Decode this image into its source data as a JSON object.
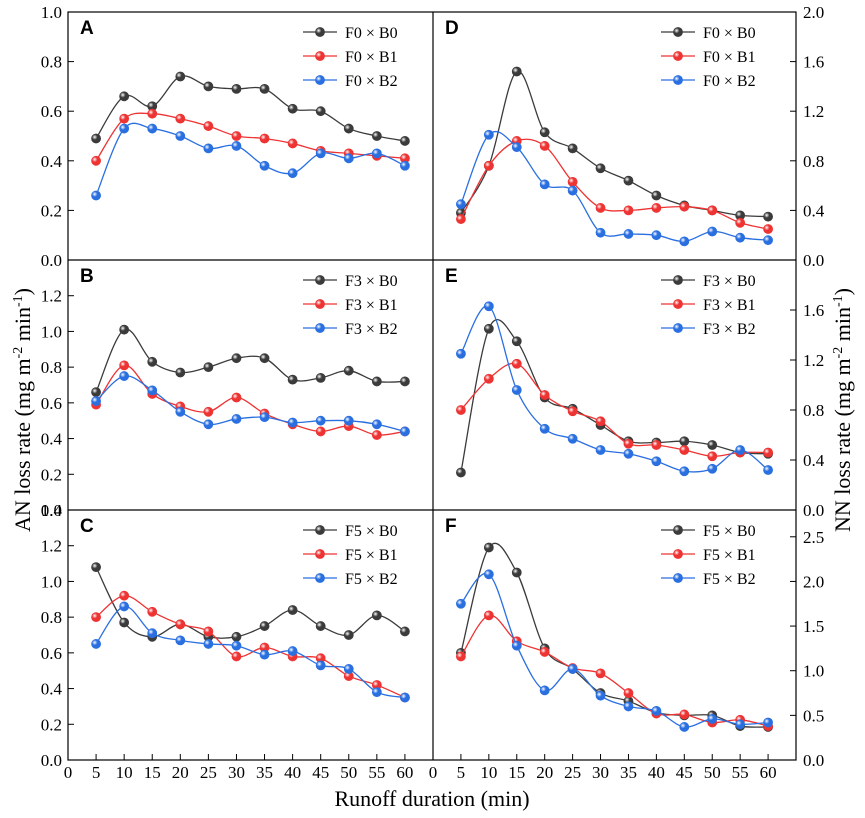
{
  "figure": {
    "xlabel": "Runoff duration (min)",
    "left_ylabel": {
      "main": "AN loss rate (mg m",
      "sup1": "-2",
      "mid": " min",
      "sup2": "-1",
      "end": ")"
    },
    "right_ylabel": {
      "main": "NN loss rate (mg m",
      "sup1": "-2",
      "mid": " min",
      "sup2": "-1",
      "end": ")"
    },
    "x_ticks": [
      "0",
      "5",
      "10",
      "15",
      "20",
      "25",
      "30",
      "35",
      "40",
      "45",
      "50",
      "55",
      "60"
    ],
    "colors": {
      "B0": "#3b3b3b",
      "B1": "#ee3333",
      "B2": "#2a6fe0"
    }
  },
  "chart_data": [
    {
      "panel": "A",
      "type": "line",
      "side": "left",
      "xlabel": "Runoff duration (min)",
      "ylabel": "AN loss rate (mg m-2 min-1)",
      "x": [
        5,
        10,
        15,
        20,
        25,
        30,
        35,
        40,
        45,
        50,
        55,
        60
      ],
      "xlim": [
        0,
        65
      ],
      "ylim": [
        0,
        1.0
      ],
      "y_ticks": [
        0.0,
        0.2,
        0.4,
        0.6,
        0.8,
        1.0
      ],
      "y_tick_labels": [
        "0.0",
        "0.2",
        "0.4",
        "0.6",
        "0.8",
        "1.0"
      ],
      "series": [
        {
          "name": "F0 × B0",
          "values": [
            0.49,
            0.66,
            0.62,
            0.74,
            0.7,
            0.69,
            0.69,
            0.61,
            0.6,
            0.53,
            0.5,
            0.48
          ]
        },
        {
          "name": "F0 × B1",
          "values": [
            0.4,
            0.57,
            0.59,
            0.57,
            0.54,
            0.5,
            0.49,
            0.47,
            0.44,
            0.43,
            0.42,
            0.41
          ]
        },
        {
          "name": "F0 × B2",
          "values": [
            0.26,
            0.53,
            0.53,
            0.5,
            0.45,
            0.46,
            0.38,
            0.35,
            0.43,
            0.41,
            0.43,
            0.38
          ]
        }
      ]
    },
    {
      "panel": "B",
      "type": "line",
      "side": "left",
      "xlabel": "Runoff duration (min)",
      "ylabel": "AN loss rate (mg m-2 min-1)",
      "x": [
        5,
        10,
        15,
        20,
        25,
        30,
        35,
        40,
        45,
        50,
        55,
        60
      ],
      "xlim": [
        0,
        65
      ],
      "ylim": [
        0,
        1.4
      ],
      "y_ticks": [
        0.0,
        0.2,
        0.4,
        0.6,
        0.8,
        1.0,
        1.2
      ],
      "y_tick_labels": [
        "0.0",
        "0.2",
        "0.4",
        "0.6",
        "0.8",
        "1.0",
        "1.2"
      ],
      "series": [
        {
          "name": "F3 × B0",
          "values": [
            0.66,
            1.01,
            0.83,
            0.77,
            0.8,
            0.85,
            0.85,
            0.73,
            0.74,
            0.78,
            0.72,
            0.72
          ]
        },
        {
          "name": "F3 × B1",
          "values": [
            0.59,
            0.81,
            0.65,
            0.58,
            0.55,
            0.63,
            0.54,
            0.48,
            0.44,
            0.47,
            0.42,
            0.44
          ]
        },
        {
          "name": "F3 × B2",
          "values": [
            0.61,
            0.75,
            0.67,
            0.55,
            0.48,
            0.51,
            0.52,
            0.49,
            0.5,
            0.5,
            0.48,
            0.44
          ]
        }
      ]
    },
    {
      "panel": "C",
      "type": "line",
      "side": "left",
      "xlabel": "Runoff duration (min)",
      "ylabel": "AN loss rate (mg m-2 min-1)",
      "x": [
        5,
        10,
        15,
        20,
        25,
        30,
        35,
        40,
        45,
        50,
        55,
        60
      ],
      "xlim": [
        0,
        65
      ],
      "ylim": [
        0,
        1.4
      ],
      "y_ticks": [
        0.0,
        0.2,
        0.4,
        0.6,
        0.8,
        1.0,
        1.2,
        1.4
      ],
      "y_tick_labels": [
        "0.0",
        "0.2",
        "0.4",
        "0.6",
        "0.8",
        "1.0",
        "1.2",
        "1.4"
      ],
      "series": [
        {
          "name": "F5 × B0",
          "values": [
            1.08,
            0.77,
            0.69,
            0.76,
            0.69,
            0.69,
            0.75,
            0.84,
            0.75,
            0.7,
            0.81,
            0.72
          ]
        },
        {
          "name": "F5 × B1",
          "values": [
            0.8,
            0.92,
            0.83,
            0.76,
            0.72,
            0.58,
            0.63,
            0.58,
            0.57,
            0.47,
            0.42,
            0.35
          ]
        },
        {
          "name": "F5 × B2",
          "values": [
            0.65,
            0.86,
            0.71,
            0.67,
            0.65,
            0.64,
            0.59,
            0.61,
            0.53,
            0.51,
            0.38,
            0.35
          ]
        }
      ]
    },
    {
      "panel": "D",
      "type": "line",
      "side": "right",
      "xlabel": "Runoff duration (min)",
      "ylabel": "NN loss rate (mg m-2 min-1)",
      "x": [
        5,
        10,
        15,
        20,
        25,
        30,
        35,
        40,
        45,
        50,
        55,
        60
      ],
      "xlim": [
        0,
        65
      ],
      "ylim": [
        0,
        2.0
      ],
      "y_ticks": [
        0.0,
        0.4,
        0.8,
        1.2,
        1.6,
        2.0
      ],
      "y_tick_labels": [
        "0.0",
        "0.4",
        "0.8",
        "1.2",
        "1.6",
        "2.0"
      ],
      "series": [
        {
          "name": "F0 × B0",
          "values": [
            0.38,
            0.76,
            1.52,
            1.03,
            0.9,
            0.74,
            0.64,
            0.52,
            0.44,
            0.4,
            0.36,
            0.35
          ]
        },
        {
          "name": "F0 × B1",
          "values": [
            0.33,
            0.76,
            0.96,
            0.92,
            0.63,
            0.42,
            0.4,
            0.42,
            0.43,
            0.4,
            0.3,
            0.25
          ]
        },
        {
          "name": "F0 × B2",
          "values": [
            0.45,
            1.01,
            0.91,
            0.61,
            0.56,
            0.22,
            0.21,
            0.2,
            0.15,
            0.23,
            0.18,
            0.16
          ]
        }
      ]
    },
    {
      "panel": "E",
      "type": "line",
      "side": "right",
      "xlabel": "Runoff duration (min)",
      "ylabel": "NN loss rate (mg m-2 min-1)",
      "x": [
        5,
        10,
        15,
        20,
        25,
        30,
        35,
        40,
        45,
        50,
        55,
        60
      ],
      "xlim": [
        0,
        65
      ],
      "ylim": [
        0,
        2.0
      ],
      "y_ticks": [
        0.0,
        0.4,
        0.8,
        1.2,
        1.6
      ],
      "y_tick_labels": [
        "0.0",
        "0.4",
        "0.8",
        "1.2",
        "1.6"
      ],
      "series": [
        {
          "name": "F3 × B0",
          "values": [
            0.3,
            1.45,
            1.35,
            0.9,
            0.81,
            0.68,
            0.55,
            0.54,
            0.55,
            0.52,
            0.46,
            0.45
          ]
        },
        {
          "name": "F3 × B1",
          "values": [
            0.8,
            1.05,
            1.17,
            0.92,
            0.79,
            0.71,
            0.53,
            0.52,
            0.48,
            0.43,
            0.46,
            0.46
          ]
        },
        {
          "name": "F3 × B2",
          "values": [
            1.25,
            1.63,
            0.96,
            0.65,
            0.57,
            0.48,
            0.45,
            0.39,
            0.31,
            0.33,
            0.48,
            0.32
          ]
        }
      ]
    },
    {
      "panel": "F",
      "type": "line",
      "side": "right",
      "xlabel": "Runoff duration (min)",
      "ylabel": "NN loss rate (mg m-2 min-1)",
      "x": [
        5,
        10,
        15,
        20,
        25,
        30,
        35,
        40,
        45,
        50,
        55,
        60
      ],
      "xlim": [
        0,
        65
      ],
      "ylim": [
        0,
        2.8
      ],
      "y_ticks": [
        0.0,
        0.5,
        1.0,
        1.5,
        2.0,
        2.5
      ],
      "y_tick_labels": [
        "0.0",
        "0.5",
        "1.0",
        "1.5",
        "2.0",
        "2.5"
      ],
      "series": [
        {
          "name": "F5 × B0",
          "values": [
            1.2,
            2.38,
            2.1,
            1.25,
            1.02,
            0.75,
            0.66,
            0.53,
            0.5,
            0.5,
            0.38,
            0.37
          ]
        },
        {
          "name": "F5 × B1",
          "values": [
            1.16,
            1.62,
            1.33,
            1.21,
            1.03,
            0.97,
            0.75,
            0.52,
            0.51,
            0.42,
            0.45,
            0.38
          ]
        },
        {
          "name": "F5 × B2",
          "values": [
            1.75,
            2.08,
            1.28,
            0.78,
            1.02,
            0.72,
            0.6,
            0.55,
            0.37,
            0.46,
            0.4,
            0.42
          ]
        }
      ]
    }
  ]
}
